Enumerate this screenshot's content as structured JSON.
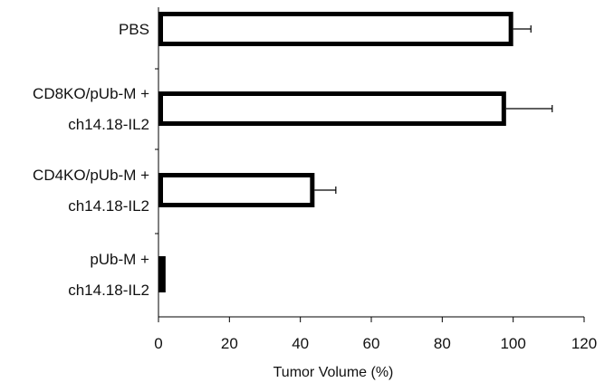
{
  "chart_data": {
    "type": "bar",
    "orientation": "horizontal",
    "title": "",
    "xlabel": "Tumor Volume (%)",
    "ylabel": "",
    "xlim": [
      0,
      120
    ],
    "xticks": [
      0,
      20,
      40,
      60,
      80,
      100,
      120
    ],
    "grid": false,
    "categories": [
      [
        "PBS"
      ],
      [
        "CD8KO/pUb-M +",
        "ch14.18-IL2"
      ],
      [
        "CD4KO/pUb-M +",
        "ch14.18-IL2"
      ],
      [
        "pUb-M +",
        "ch14.18-IL2"
      ]
    ],
    "values": [
      100,
      98,
      44,
      2
    ],
    "errors": [
      5,
      13,
      6,
      0
    ],
    "fill": [
      "#ffffff",
      "#ffffff",
      "#ffffff",
      "#000000"
    ],
    "edge_color": "#000000"
  }
}
